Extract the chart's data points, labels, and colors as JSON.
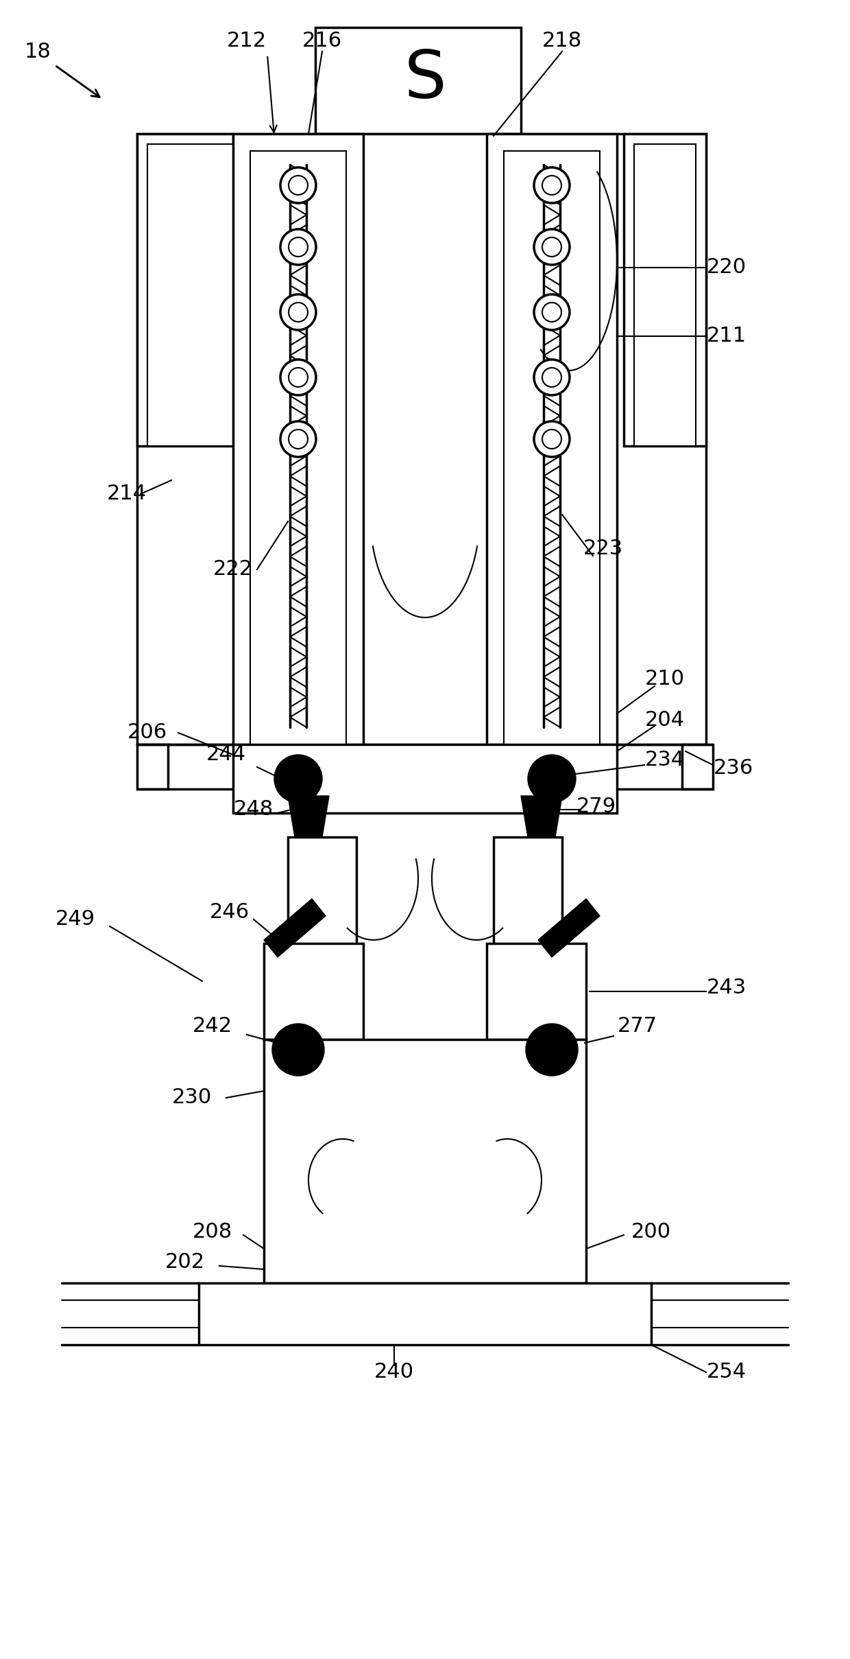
{
  "bg_color": "#ffffff",
  "lw": 2.5,
  "tlw": 1.5,
  "fig_width": 12.4,
  "fig_height": 24.18,
  "dpi": 100
}
